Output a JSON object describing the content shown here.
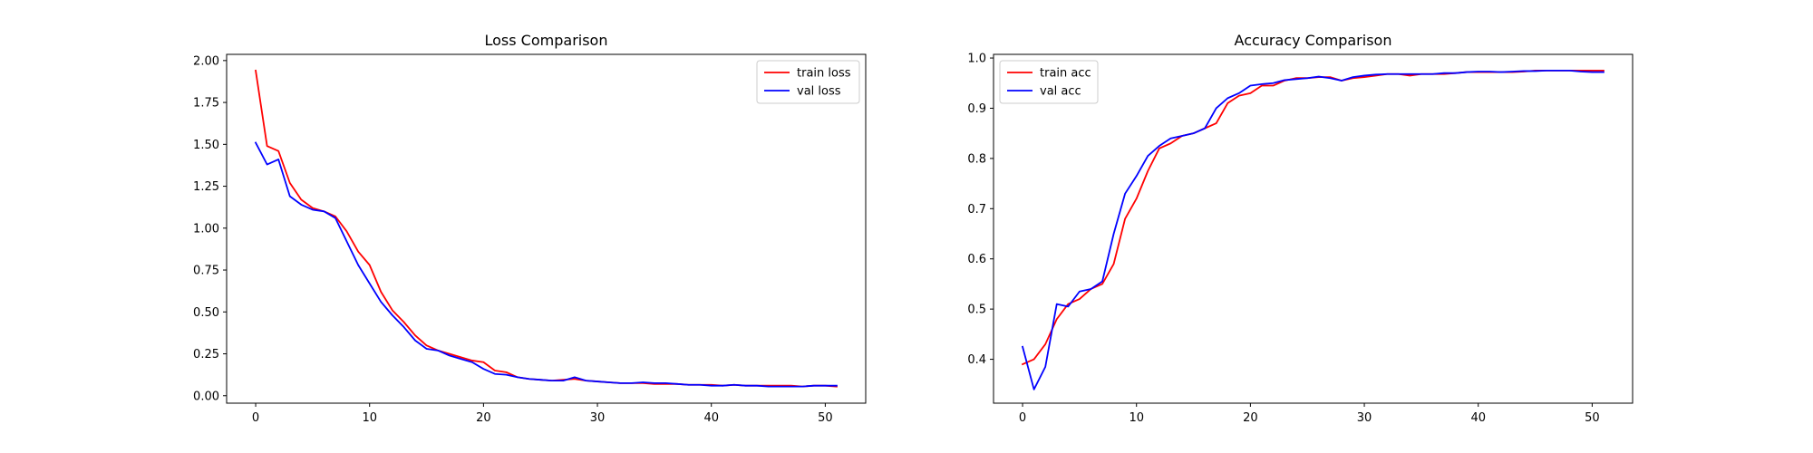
{
  "chart_data": [
    {
      "type": "line",
      "title": "Loss Comparison",
      "xlabel": "",
      "ylabel": "",
      "xlim": [
        -2.55,
        53.55
      ],
      "ylim": [
        -0.0445,
        2.037
      ],
      "x_ticks": [
        0,
        10,
        20,
        30,
        40,
        50
      ],
      "y_ticks": [
        0.0,
        0.25,
        0.5,
        0.75,
        1.0,
        1.25,
        1.5,
        1.75,
        2.0
      ],
      "y_tick_labels": [
        "0.00",
        "0.25",
        "0.50",
        "0.75",
        "1.00",
        "1.25",
        "1.50",
        "1.75",
        "2.00"
      ],
      "grid": false,
      "legend_position": "top-right",
      "x": [
        0,
        1,
        2,
        3,
        4,
        5,
        6,
        7,
        8,
        9,
        10,
        11,
        12,
        13,
        14,
        15,
        16,
        17,
        18,
        19,
        20,
        21,
        22,
        23,
        24,
        25,
        26,
        27,
        28,
        29,
        30,
        31,
        32,
        33,
        34,
        35,
        36,
        37,
        38,
        39,
        40,
        41,
        42,
        43,
        44,
        45,
        46,
        47,
        48,
        49,
        50,
        51
      ],
      "series": [
        {
          "name": "train loss",
          "color": "#ff0000",
          "values": [
            1.94,
            1.49,
            1.46,
            1.27,
            1.17,
            1.12,
            1.1,
            1.07,
            0.98,
            0.86,
            0.78,
            0.62,
            0.51,
            0.44,
            0.36,
            0.3,
            0.27,
            0.25,
            0.23,
            0.21,
            0.2,
            0.15,
            0.14,
            0.11,
            0.1,
            0.095,
            0.09,
            0.095,
            0.1,
            0.09,
            0.085,
            0.08,
            0.075,
            0.075,
            0.075,
            0.07,
            0.07,
            0.07,
            0.065,
            0.065,
            0.065,
            0.06,
            0.065,
            0.06,
            0.06,
            0.06,
            0.06,
            0.06,
            0.055,
            0.06,
            0.06,
            0.055
          ]
        },
        {
          "name": "val loss",
          "color": "#0000ff",
          "values": [
            1.51,
            1.38,
            1.41,
            1.19,
            1.14,
            1.11,
            1.1,
            1.06,
            0.92,
            0.78,
            0.67,
            0.56,
            0.48,
            0.41,
            0.33,
            0.28,
            0.27,
            0.24,
            0.22,
            0.2,
            0.16,
            0.13,
            0.125,
            0.11,
            0.1,
            0.095,
            0.09,
            0.09,
            0.11,
            0.09,
            0.085,
            0.08,
            0.075,
            0.075,
            0.08,
            0.075,
            0.075,
            0.07,
            0.065,
            0.065,
            0.06,
            0.06,
            0.065,
            0.06,
            0.06,
            0.055,
            0.055,
            0.055,
            0.055,
            0.06,
            0.06,
            0.06
          ]
        }
      ]
    },
    {
      "type": "line",
      "title": "Accuracy Comparison",
      "xlabel": "",
      "ylabel": "",
      "xlim": [
        -2.55,
        53.55
      ],
      "ylim": [
        0.3126,
        1.0073
      ],
      "x_ticks": [
        0,
        10,
        20,
        30,
        40,
        50
      ],
      "y_ticks": [
        0.4,
        0.5,
        0.6,
        0.7,
        0.8,
        0.9,
        1.0
      ],
      "y_tick_labels": [
        "0.4",
        "0.5",
        "0.6",
        "0.7",
        "0.8",
        "0.9",
        "1.0"
      ],
      "grid": false,
      "legend_position": "top-left",
      "x": [
        0,
        1,
        2,
        3,
        4,
        5,
        6,
        7,
        8,
        9,
        10,
        11,
        12,
        13,
        14,
        15,
        16,
        17,
        18,
        19,
        20,
        21,
        22,
        23,
        24,
        25,
        26,
        27,
        28,
        29,
        30,
        31,
        32,
        33,
        34,
        35,
        36,
        37,
        38,
        39,
        40,
        41,
        42,
        43,
        44,
        45,
        46,
        47,
        48,
        49,
        50,
        51
      ],
      "series": [
        {
          "name": "train acc",
          "color": "#ff0000",
          "values": [
            0.39,
            0.4,
            0.43,
            0.48,
            0.51,
            0.52,
            0.54,
            0.55,
            0.59,
            0.68,
            0.72,
            0.775,
            0.82,
            0.83,
            0.845,
            0.85,
            0.86,
            0.87,
            0.91,
            0.925,
            0.93,
            0.945,
            0.945,
            0.955,
            0.96,
            0.96,
            0.962,
            0.962,
            0.955,
            0.96,
            0.962,
            0.965,
            0.968,
            0.968,
            0.965,
            0.968,
            0.968,
            0.968,
            0.97,
            0.972,
            0.972,
            0.972,
            0.972,
            0.972,
            0.973,
            0.975,
            0.975,
            0.975,
            0.975,
            0.975,
            0.975,
            0.975
          ]
        },
        {
          "name": "val acc",
          "color": "#0000ff",
          "values": [
            0.425,
            0.34,
            0.385,
            0.51,
            0.505,
            0.535,
            0.54,
            0.555,
            0.65,
            0.73,
            0.765,
            0.805,
            0.825,
            0.84,
            0.845,
            0.85,
            0.86,
            0.9,
            0.92,
            0.93,
            0.945,
            0.948,
            0.95,
            0.956,
            0.958,
            0.96,
            0.963,
            0.96,
            0.955,
            0.962,
            0.965,
            0.967,
            0.968,
            0.968,
            0.968,
            0.968,
            0.968,
            0.97,
            0.97,
            0.972,
            0.973,
            0.973,
            0.972,
            0.973,
            0.974,
            0.974,
            0.975,
            0.975,
            0.975,
            0.973,
            0.972,
            0.972
          ]
        }
      ]
    }
  ]
}
